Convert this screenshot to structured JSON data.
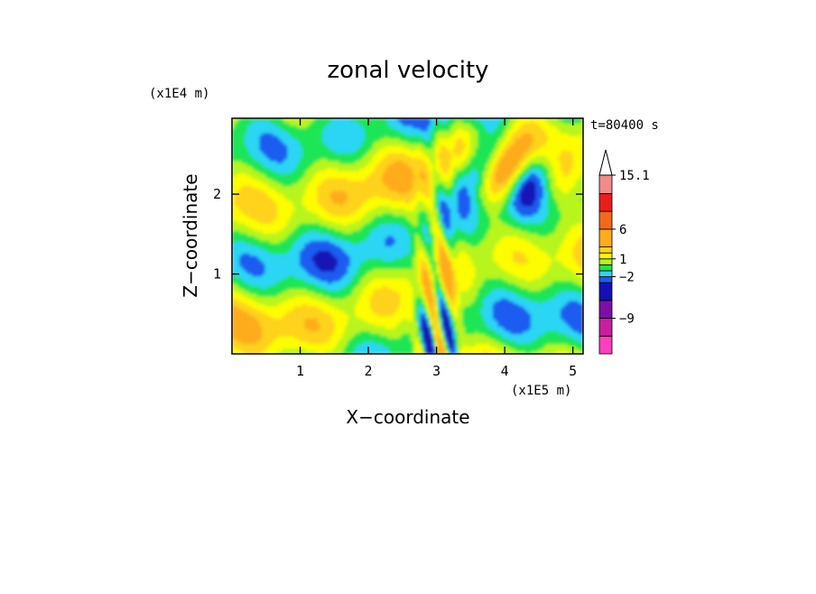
{
  "chart_data": {
    "type": "heatmap",
    "title": "zonal velocity",
    "xlabel": "X−coordinate",
    "ylabel": "Z−coordinate",
    "x_scale_label": "(x1E5 m)",
    "y_scale_label": "(x1E4 m)",
    "time_label": "t=80400 s",
    "xlim": [
      0,
      5.15
    ],
    "ylim": [
      0,
      2.95
    ],
    "x_ticks": [
      1,
      2,
      3,
      4,
      5
    ],
    "y_ticks": [
      1,
      2
    ],
    "colorbar": {
      "levels": [
        -15,
        -12,
        -9,
        -6,
        -3,
        -2,
        -1,
        0,
        1,
        2,
        3,
        6,
        9,
        12,
        15.1
      ],
      "tick_labels": [
        "15.1",
        "6",
        "1",
        "−2",
        "−9"
      ],
      "tick_values": [
        15.1,
        6,
        1,
        -2,
        -9
      ],
      "colors": [
        "#ff3fbf",
        "#c81ea0",
        "#7d0fa6",
        "#1212b4",
        "#1f5cf0",
        "#2ad6f4",
        "#1fe654",
        "#b7f51c",
        "#fdfd00",
        "#ffd21f",
        "#ffab1f",
        "#f06a1a",
        "#e8201a",
        "#f08c8c",
        "#f8c2c2"
      ]
    },
    "field_description": "zonal velocity contour field, mostly weak values (green/yellow/orange bands sloping upward to the right), strongest perturbations near x=3 (x1E5 m) close to the surface"
  }
}
